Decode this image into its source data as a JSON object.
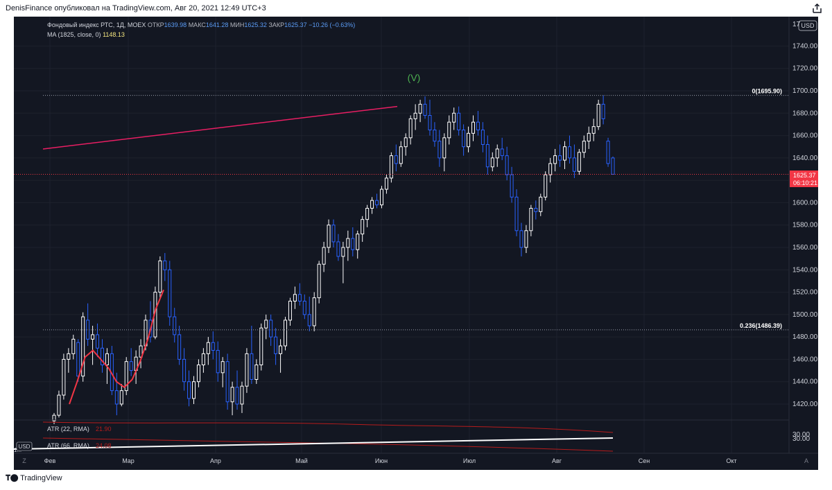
{
  "header": {
    "attribution": "DenisFinance опубликовал на TradingView.com, Авг 20, 2021 12:49 UTC+3"
  },
  "legend": {
    "symbol": "Фондовый индекс РТС, 1Д, MOEX",
    "open_label": "ОТКР",
    "open_value": "1639.98",
    "high_label": "МАКС",
    "high_value": "1641.28",
    "low_label": "МИН",
    "low_value": "1625.32",
    "close_label": "ЗАКР",
    "close_value": "1625.37",
    "change": "−10.26 (−0.63%)",
    "ma_label": "MA (1825, close, 0)",
    "ma_value": "1148.13"
  },
  "price_axis": {
    "currency": "USD",
    "ticks": [
      "1740.00",
      "1720.00",
      "1700.00",
      "1680.00",
      "1660.00",
      "1640.00",
      "1620.00",
      "1600.00",
      "1580.00",
      "1560.00",
      "1540.00",
      "1520.00",
      "1500.00",
      "1480.00",
      "1460.00",
      "1440.00",
      "1420.00"
    ],
    "top_partial": "17",
    "last_price": "1625.37",
    "countdown": "06:10:21"
  },
  "time_axis": {
    "labels": [
      "Фев",
      "Мар",
      "Апр",
      "Май",
      "Июн",
      "Июл",
      "Авг",
      "Сен",
      "Окт"
    ]
  },
  "annotations": {
    "wave_label": "(V)",
    "fib_top": "0(1695.90)",
    "fib_bottom": "0.236(1486.39)"
  },
  "indicators": {
    "atr1_label": "ATR (22, RMA)",
    "atr1_value": "21.90",
    "atr2_label": "ATR (66, RMA)",
    "atr2_value": "24.08",
    "atr_axis_tick": "30.00",
    "atr_axis_tick2": "30.00",
    "left_usd": "USD",
    "left_partial": "1..."
  },
  "footer": {
    "brand": "TradingView"
  },
  "colors": {
    "background": "#131722",
    "up_candle": "#ffffff",
    "down_candle": "#2962ff",
    "ma": "#f23645",
    "trendline": "#e91e63",
    "wave": "#4caf50",
    "last_price": "#f23645"
  },
  "chart_data": {
    "type": "candlestick",
    "title": "Фондовый индекс РТС, 1Д, MOEX",
    "ylim": [
      1410,
      1750
    ],
    "x_labels": [
      "Фев",
      "Мар",
      "Апр",
      "Май",
      "Июн",
      "Июл",
      "Авг",
      "Сен",
      "Окт"
    ],
    "series": [
      {
        "name": "Фондовый индекс РТС",
        "ohlc": [
          [
            1405,
            1412,
            1402,
            1410
          ],
          [
            1410,
            1432,
            1408,
            1428
          ],
          [
            1428,
            1465,
            1424,
            1460
          ],
          [
            1460,
            1470,
            1448,
            1465
          ],
          [
            1465,
            1482,
            1460,
            1478
          ],
          [
            1475,
            1478,
            1440,
            1445
          ],
          [
            1445,
            1502,
            1440,
            1498
          ],
          [
            1495,
            1510,
            1472,
            1478
          ],
          [
            1478,
            1490,
            1455,
            1482
          ],
          [
            1482,
            1492,
            1462,
            1470
          ],
          [
            1470,
            1478,
            1448,
            1455
          ],
          [
            1455,
            1470,
            1438,
            1465
          ],
          [
            1465,
            1472,
            1428,
            1432
          ],
          [
            1432,
            1448,
            1410,
            1420
          ],
          [
            1420,
            1438,
            1418,
            1432
          ],
          [
            1432,
            1462,
            1428,
            1458
          ],
          [
            1458,
            1470,
            1445,
            1450
          ],
          [
            1450,
            1468,
            1438,
            1462
          ],
          [
            1462,
            1478,
            1452,
            1472
          ],
          [
            1472,
            1500,
            1468,
            1495
          ],
          [
            1495,
            1512,
            1475,
            1480
          ],
          [
            1480,
            1525,
            1478,
            1520
          ],
          [
            1520,
            1552,
            1515,
            1548
          ],
          [
            1548,
            1555,
            1530,
            1540
          ],
          [
            1540,
            1548,
            1490,
            1498
          ],
          [
            1498,
            1506,
            1475,
            1482
          ],
          [
            1482,
            1490,
            1455,
            1460
          ],
          [
            1460,
            1470,
            1432,
            1440
          ],
          [
            1440,
            1450,
            1418,
            1425
          ],
          [
            1425,
            1445,
            1420,
            1440
          ],
          [
            1440,
            1460,
            1435,
            1455
          ],
          [
            1455,
            1470,
            1448,
            1465
          ],
          [
            1465,
            1480,
            1455,
            1475
          ],
          [
            1475,
            1485,
            1460,
            1468
          ],
          [
            1468,
            1476,
            1440,
            1448
          ],
          [
            1448,
            1462,
            1435,
            1458
          ],
          [
            1458,
            1465,
            1415,
            1422
          ],
          [
            1422,
            1440,
            1410,
            1435
          ],
          [
            1435,
            1450,
            1415,
            1420
          ],
          [
            1420,
            1440,
            1412,
            1436
          ],
          [
            1436,
            1470,
            1430,
            1465
          ],
          [
            1465,
            1490,
            1438,
            1442
          ],
          [
            1442,
            1460,
            1438,
            1455
          ],
          [
            1455,
            1492,
            1450,
            1488
          ],
          [
            1488,
            1500,
            1478,
            1495
          ],
          [
            1495,
            1500,
            1472,
            1480
          ],
          [
            1480,
            1488,
            1455,
            1465
          ],
          [
            1465,
            1478,
            1448,
            1472
          ],
          [
            1472,
            1498,
            1468,
            1495
          ],
          [
            1495,
            1515,
            1490,
            1512
          ],
          [
            1512,
            1525,
            1505,
            1518
          ],
          [
            1518,
            1528,
            1508,
            1512
          ],
          [
            1512,
            1518,
            1496,
            1500
          ],
          [
            1500,
            1516,
            1485,
            1490
          ],
          [
            1490,
            1520,
            1485,
            1515
          ],
          [
            1515,
            1548,
            1510,
            1545
          ],
          [
            1545,
            1565,
            1538,
            1560
          ],
          [
            1560,
            1585,
            1555,
            1580
          ],
          [
            1580,
            1585,
            1560,
            1565
          ],
          [
            1565,
            1572,
            1548,
            1552
          ],
          [
            1552,
            1565,
            1528,
            1560
          ],
          [
            1560,
            1575,
            1548,
            1568
          ],
          [
            1568,
            1578,
            1552,
            1558
          ],
          [
            1558,
            1575,
            1550,
            1572
          ],
          [
            1572,
            1588,
            1565,
            1585
          ],
          [
            1585,
            1598,
            1578,
            1595
          ],
          [
            1595,
            1605,
            1590,
            1602
          ],
          [
            1602,
            1608,
            1595,
            1598
          ],
          [
            1598,
            1615,
            1595,
            1612
          ],
          [
            1612,
            1625,
            1608,
            1622
          ],
          [
            1622,
            1645,
            1618,
            1642
          ],
          [
            1642,
            1652,
            1628,
            1635
          ],
          [
            1635,
            1655,
            1632,
            1650
          ],
          [
            1650,
            1662,
            1642,
            1658
          ],
          [
            1658,
            1678,
            1652,
            1675
          ],
          [
            1675,
            1688,
            1665,
            1680
          ],
          [
            1680,
            1692,
            1672,
            1688
          ],
          [
            1688,
            1695,
            1675,
            1678
          ],
          [
            1678,
            1692,
            1660,
            1665
          ],
          [
            1665,
            1672,
            1650,
            1655
          ],
          [
            1655,
            1665,
            1632,
            1640
          ],
          [
            1640,
            1662,
            1628,
            1658
          ],
          [
            1658,
            1678,
            1652,
            1672
          ],
          [
            1672,
            1685,
            1665,
            1680
          ],
          [
            1680,
            1686,
            1660,
            1665
          ],
          [
            1665,
            1670,
            1642,
            1650
          ],
          [
            1650,
            1668,
            1645,
            1662
          ],
          [
            1662,
            1678,
            1655,
            1672
          ],
          [
            1672,
            1682,
            1660,
            1665
          ],
          [
            1665,
            1672,
            1645,
            1652
          ],
          [
            1652,
            1660,
            1625,
            1632
          ],
          [
            1632,
            1645,
            1628,
            1640
          ],
          [
            1640,
            1652,
            1632,
            1648
          ],
          [
            1648,
            1658,
            1638,
            1642
          ],
          [
            1642,
            1650,
            1620,
            1625
          ],
          [
            1625,
            1632,
            1600,
            1605
          ],
          [
            1605,
            1612,
            1570,
            1575
          ],
          [
            1575,
            1582,
            1552,
            1560
          ],
          [
            1560,
            1580,
            1555,
            1575
          ],
          [
            1575,
            1598,
            1570,
            1595
          ],
          [
            1595,
            1602,
            1585,
            1592
          ],
          [
            1592,
            1608,
            1588,
            1605
          ],
          [
            1605,
            1628,
            1602,
            1625
          ],
          [
            1625,
            1640,
            1618,
            1635
          ],
          [
            1635,
            1648,
            1628,
            1642
          ],
          [
            1642,
            1652,
            1632,
            1638
          ],
          [
            1638,
            1655,
            1630,
            1650
          ],
          [
            1650,
            1660,
            1635,
            1640
          ],
          [
            1640,
            1652,
            1622,
            1628
          ],
          [
            1628,
            1648,
            1625,
            1645
          ],
          [
            1645,
            1660,
            1640,
            1655
          ],
          [
            1655,
            1668,
            1648,
            1662
          ],
          [
            1662,
            1675,
            1655,
            1668
          ],
          [
            1668,
            1692,
            1665,
            1688
          ],
          [
            1688,
            1696,
            1670,
            1675
          ],
          [
            1655,
            1658,
            1632,
            1635
          ],
          [
            1639.98,
            1641.28,
            1625.32,
            1625.37
          ]
        ]
      },
      {
        "name": "MA (1825, close, 0)",
        "values": [
          1420,
          1440,
          1462,
          1468,
          1460,
          1452,
          1440,
          1435,
          1442,
          1458,
          1478,
          1505,
          1522
        ]
      }
    ]
  }
}
